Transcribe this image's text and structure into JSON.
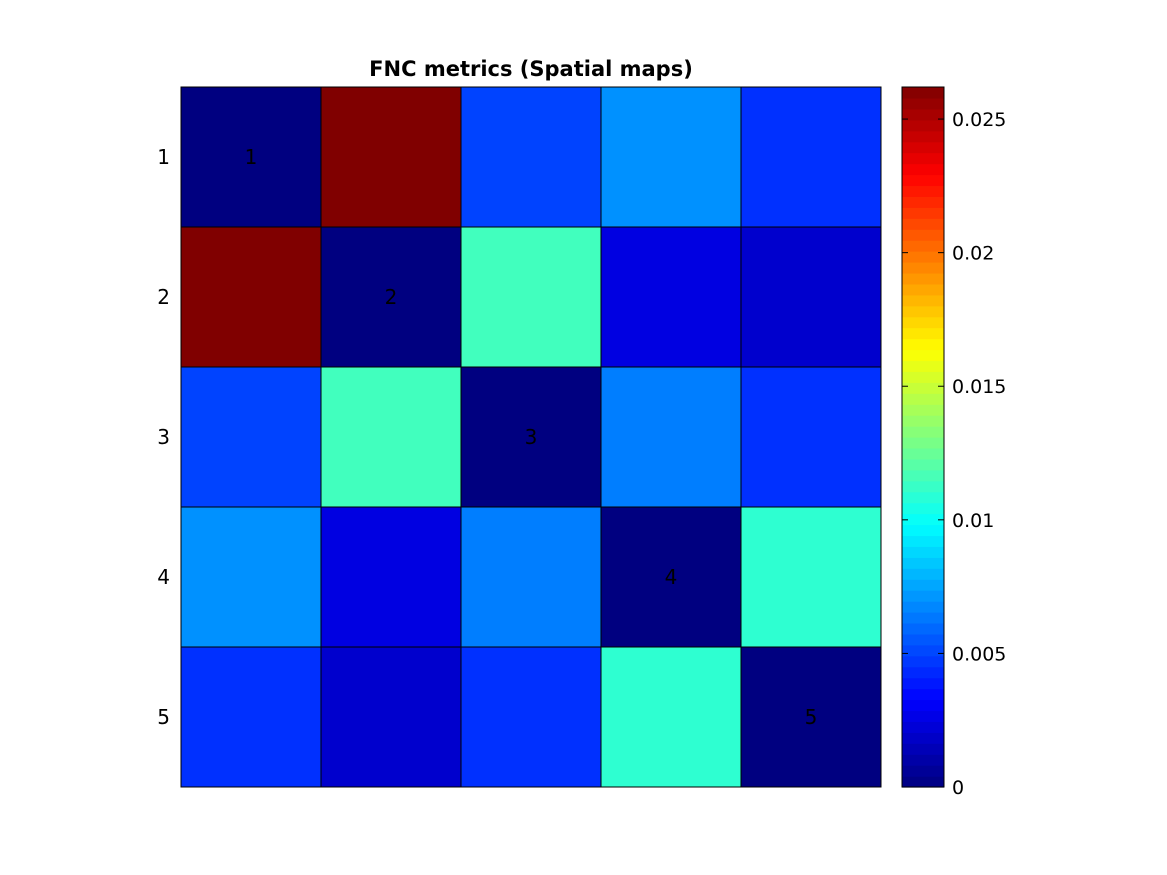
{
  "chart_data": {
    "type": "heatmap",
    "title": "FNC metrics (Spatial maps)",
    "xlabel": "",
    "ylabel": "",
    "rows": [
      1,
      2,
      3,
      4,
      5
    ],
    "cols": [
      1,
      2,
      3,
      4,
      5
    ],
    "row_tick_labels": [
      "1",
      "2",
      "3",
      "4",
      "5"
    ],
    "diagonal_labels": [
      "1",
      "2",
      "3",
      "4",
      "5"
    ],
    "values": [
      [
        0.0,
        0.0262,
        0.005,
        0.007,
        0.0045
      ],
      [
        0.0262,
        0.0,
        0.0115,
        0.0025,
        0.002
      ],
      [
        0.005,
        0.0115,
        0.0,
        0.0065,
        0.0045
      ],
      [
        0.007,
        0.0025,
        0.0065,
        0.0,
        0.011
      ],
      [
        0.0045,
        0.002,
        0.0045,
        0.011,
        0.0
      ]
    ],
    "colormap": "jet",
    "clim": [
      0,
      0.0262
    ],
    "colorbar": {
      "ticks": [
        0,
        0.005,
        0.01,
        0.015,
        0.02,
        0.025
      ],
      "tick_labels": [
        "0",
        "0.005",
        "0.01",
        "0.015",
        "0.02",
        "0.025"
      ],
      "placement": "right"
    },
    "grid": true
  }
}
